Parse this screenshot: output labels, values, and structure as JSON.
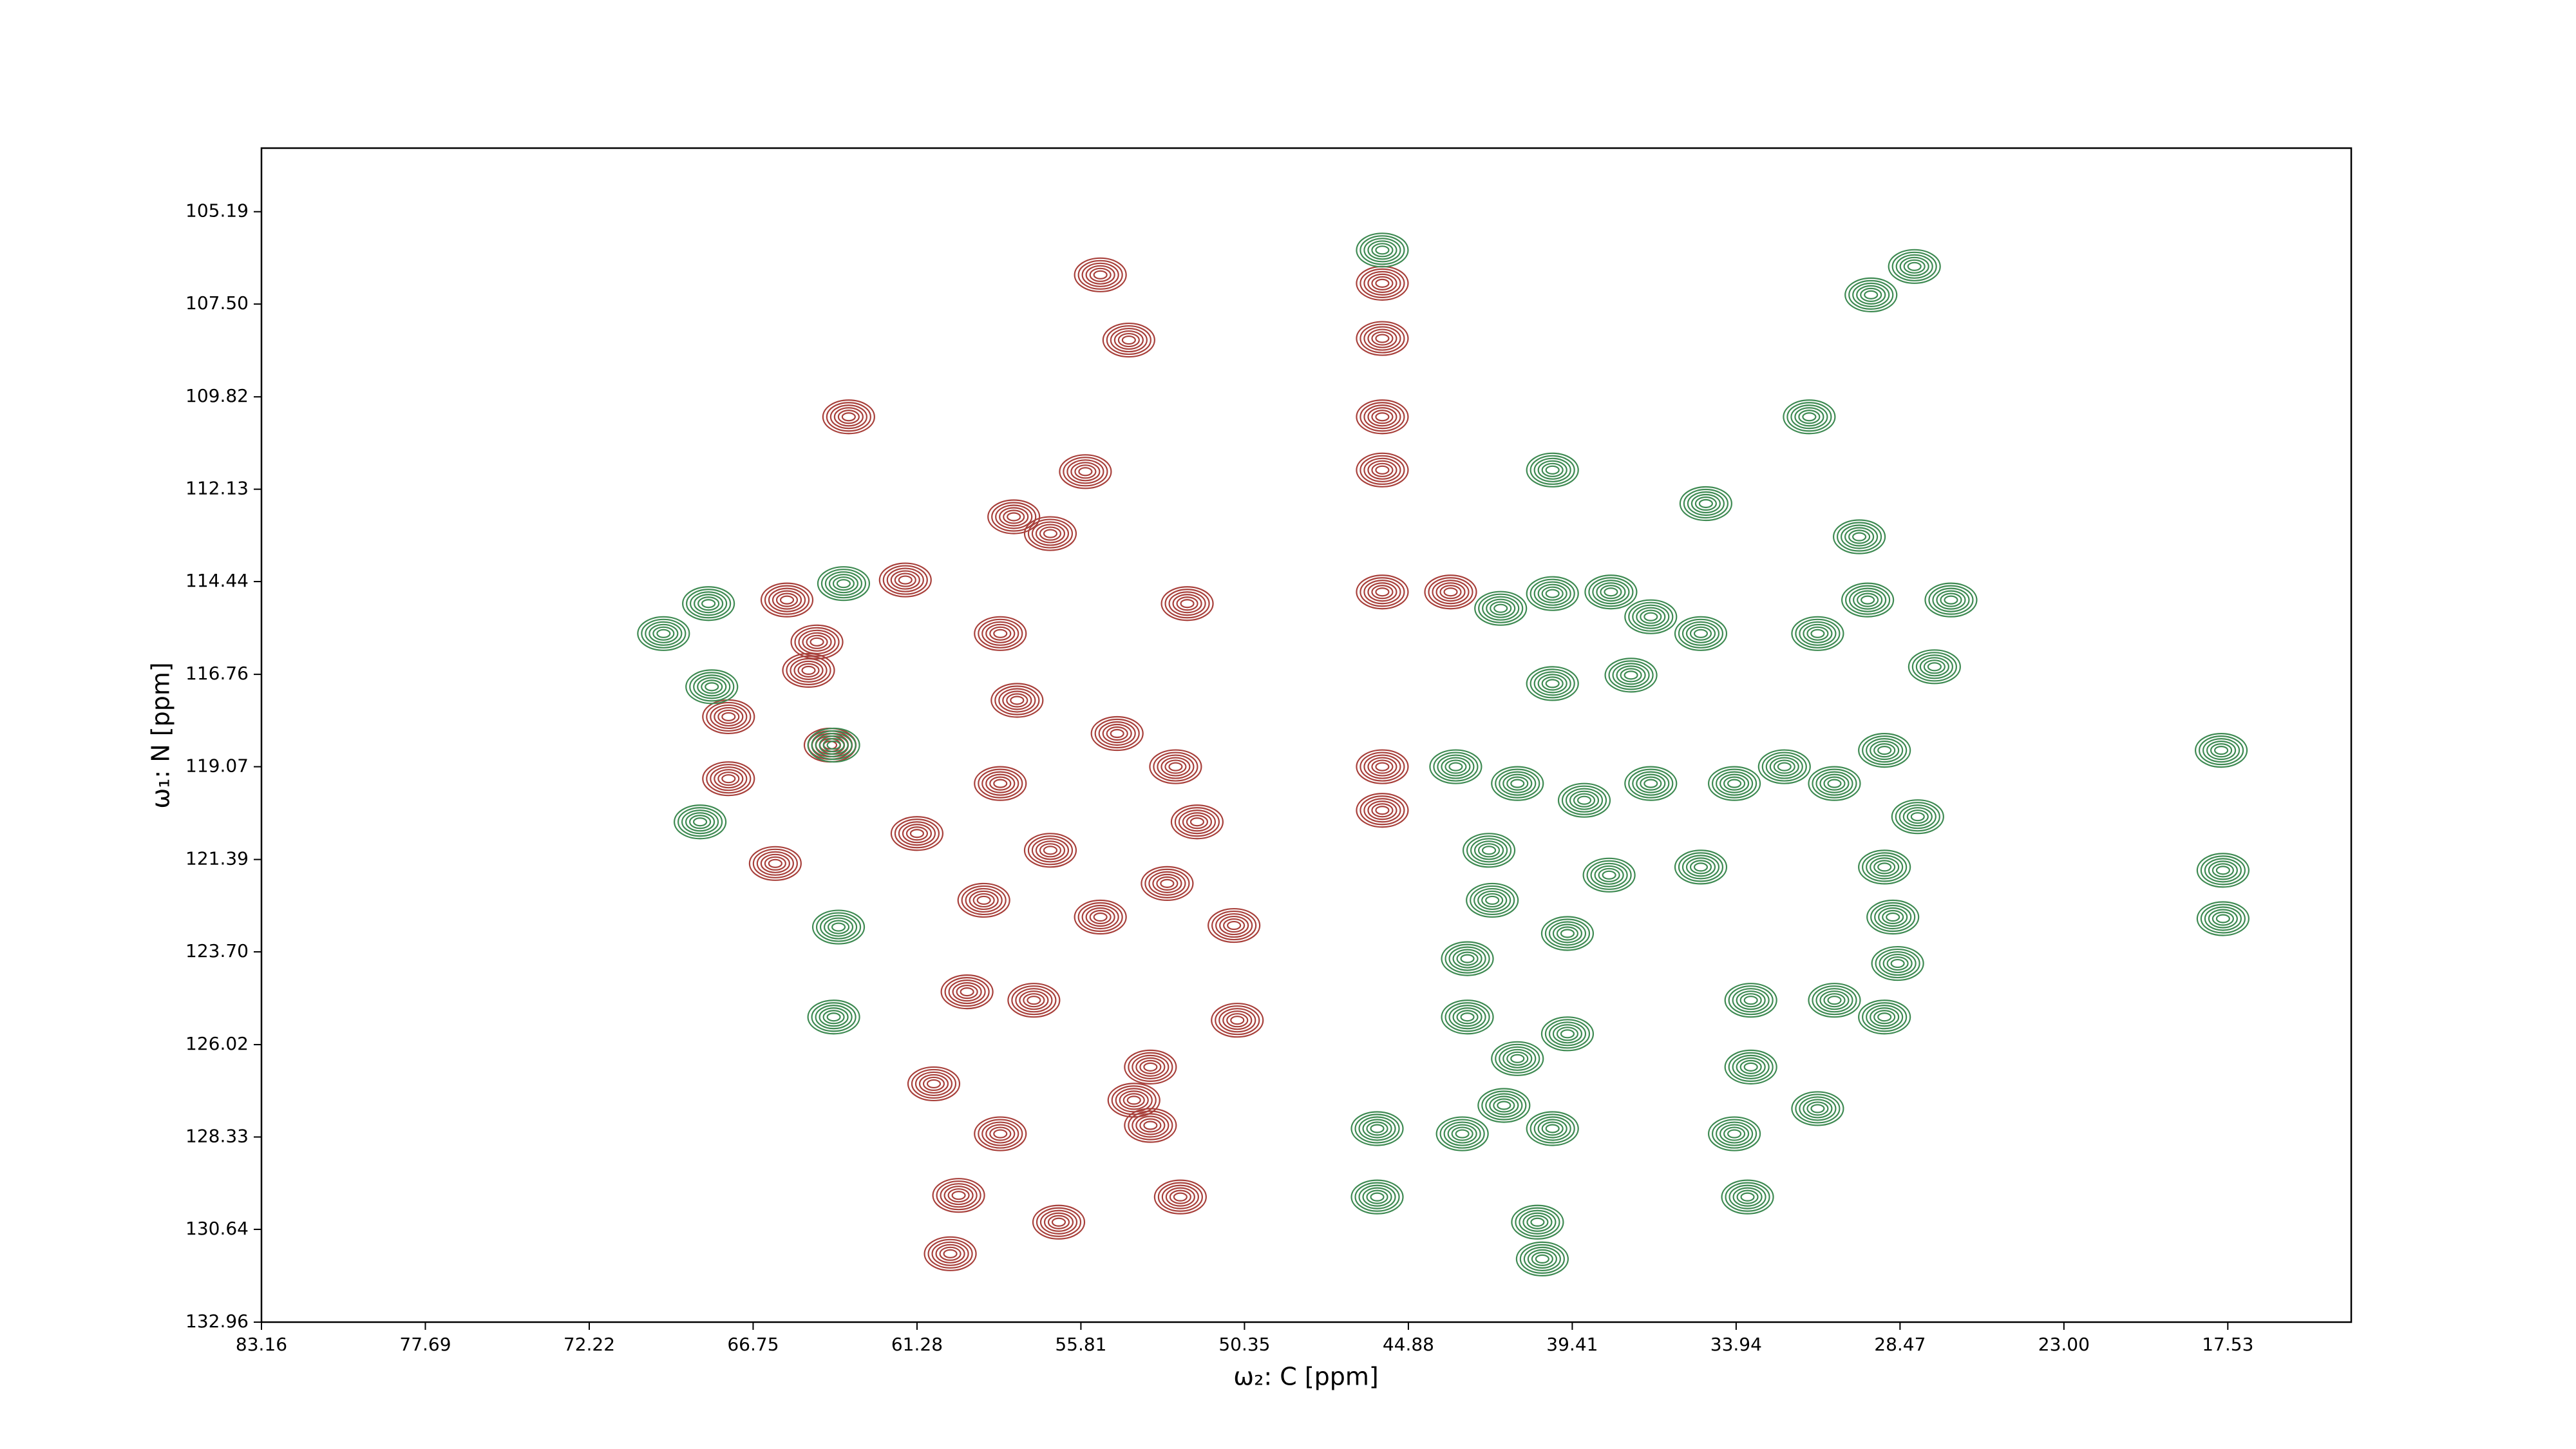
{
  "chart_data": {
    "type": "contour",
    "x_label": "ω₂: C [ppm]",
    "y_label": "ω₁: N [ppm]",
    "xlim": [
      83.16,
      13.41
    ],
    "ylim": [
      132.96,
      103.6
    ],
    "xticks": [
      83.16,
      77.69,
      72.22,
      66.75,
      61.28,
      55.81,
      50.35,
      44.88,
      39.41,
      33.94,
      28.47,
      {
        "value": 23,
        "label": "23.00"
      },
      17.53
    ],
    "yticks": [
      105.19,
      {
        "value": 107.5,
        "label": "107.50"
      },
      109.82,
      112.13,
      114.44,
      116.76,
      119.07,
      121.39,
      {
        "value": 123.7,
        "label": "123.70"
      },
      126.02,
      128.33,
      130.64,
      132.96
    ],
    "series": [
      {
        "color": "#a8403b",
        "x": [
          55.16,
          54.21,
          45.75,
          45.75,
          45.75,
          45.75,
          63.56,
          55.66,
          58.05,
          56.83,
          65.62,
          61.67,
          52.26,
          45.75,
          43.47,
          64.62,
          64.9,
          67.57,
          64.18,
          67.57,
          58.5,
          57.94,
          54.6,
          52.65,
          51.93,
          66.01,
          56.83,
          59.05,
          55.16,
          52.93,
          50.7,
          59.61,
          57.38,
          53.49,
          60.72,
          54.04,
          58.5,
          53.49,
          50.59,
          45.75,
          45.75,
          59.89,
          56.55,
          52.49,
          60.17,
          58.5,
          61.28
        ],
        "values": [
          106.77,
          108.4,
          106.98,
          108.36,
          110.32,
          111.65,
          110.32,
          111.69,
          112.82,
          113.24,
          114.9,
          114.4,
          114.99,
          114.7,
          114.7,
          115.95,
          116.66,
          117.82,
          118.53,
          119.37,
          115.74,
          117.41,
          118.24,
          119.07,
          120.45,
          121.49,
          121.16,
          122.41,
          122.83,
          121.99,
          123.04,
          124.7,
          124.91,
          126.58,
          127.0,
          127.41,
          128.25,
          128.04,
          125.41,
          119.07,
          120.16,
          129.79,
          130.46,
          129.83,
          131.25,
          119.49,
          120.74
        ]
      },
      {
        "color": "#3e8a52",
        "x": [
          68.24,
          63.73,
          69.74,
          68.13,
          68.52,
          64.06,
          63.9,
          64.06,
          45.75,
          41.8,
          40.07,
          38.12,
          36.79,
          35.12,
          40.07,
          37.45,
          43.3,
          41.24,
          39.01,
          36.79,
          34.0,
          32.33,
          30.66,
          28.99,
          27.88,
          28.99,
          31.22,
          29.55,
          26.77,
          27.32,
          29.83,
          27.99,
          29.44,
          31.5,
          40.07,
          34.95,
          42.19,
          42.08,
          42.91,
          39.57,
          38.18,
          35.12,
          33.45,
          30.66,
          28.99,
          33.45,
          31.22,
          34.0,
          39.57,
          41.24,
          42.91,
          43.08,
          41.69,
          40.07,
          45.92,
          45.92,
          40.57,
          40.41,
          17.69,
          17.69,
          17.75,
          33.56,
          28.71,
          28.55
        ],
        "values": [
          114.99,
          114.49,
          115.74,
          117.07,
          120.45,
          118.53,
          123.08,
          125.33,
          106.15,
          115.11,
          114.74,
          114.7,
          115.32,
          115.74,
          116.99,
          116.78,
          119.07,
          119.49,
          119.91,
          119.49,
          119.49,
          119.07,
          119.49,
          118.66,
          120.32,
          121.58,
          115.74,
          114.9,
          114.9,
          116.57,
          113.32,
          106.56,
          107.27,
          110.32,
          111.65,
          112.49,
          121.16,
          122.41,
          123.87,
          123.24,
          121.78,
          121.58,
          124.91,
          124.91,
          125.33,
          126.58,
          127.62,
          128.25,
          125.75,
          126.37,
          125.33,
          128.25,
          127.54,
          128.12,
          128.12,
          129.83,
          130.46,
          131.38,
          121.66,
          122.87,
          118.66,
          129.83,
          122.83,
          123.99
        ]
      }
    ]
  }
}
